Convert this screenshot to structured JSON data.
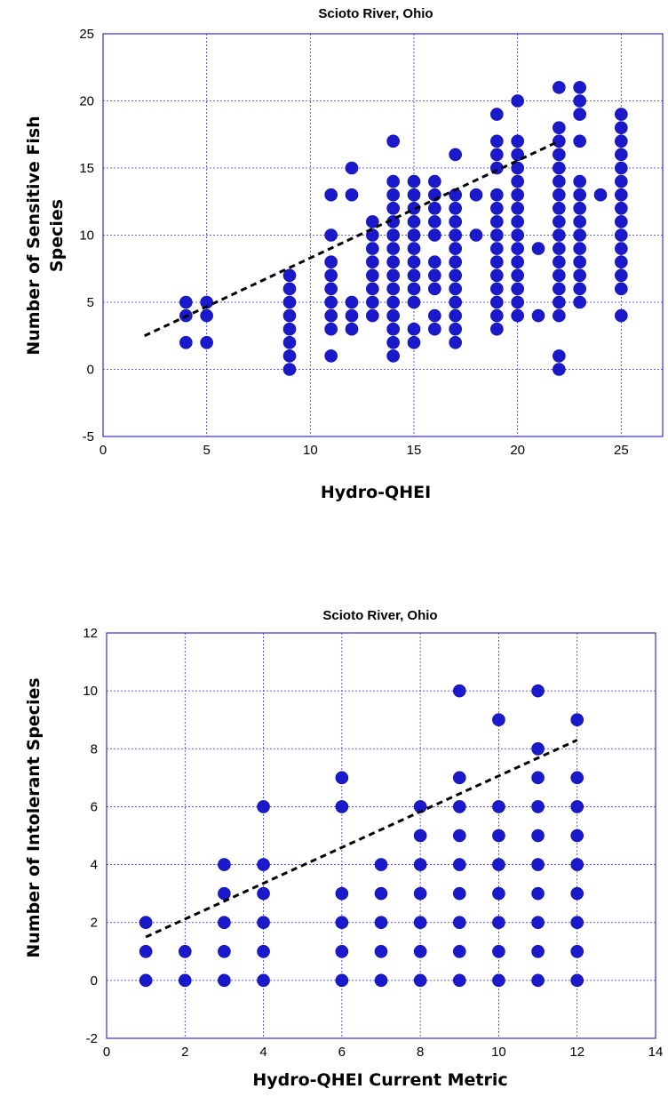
{
  "chart_data": [
    {
      "type": "scatter",
      "title": "Scioto River, Ohio",
      "xlabel": "Hydro-QHEI",
      "ylabel_lines": [
        "Number of Sensitive Fish",
        "Species"
      ],
      "xlim": [
        0,
        27
      ],
      "ylim": [
        -5,
        25
      ],
      "xticks": [
        0,
        5,
        10,
        15,
        20,
        25
      ],
      "yticks": [
        -5,
        0,
        5,
        10,
        15,
        20,
        25
      ],
      "grid": true,
      "marker_color": "#1a1acc",
      "trendline": {
        "x": [
          2,
          22
        ],
        "y": [
          2.5,
          17
        ]
      },
      "points": [
        [
          4,
          2
        ],
        [
          4,
          4
        ],
        [
          4,
          5
        ],
        [
          5,
          2
        ],
        [
          5,
          4
        ],
        [
          5,
          5
        ],
        [
          9,
          0
        ],
        [
          9,
          1
        ],
        [
          9,
          2
        ],
        [
          9,
          3
        ],
        [
          9,
          4
        ],
        [
          9,
          5
        ],
        [
          9,
          6
        ],
        [
          9,
          7
        ],
        [
          11,
          1
        ],
        [
          11,
          3
        ],
        [
          11,
          4
        ],
        [
          11,
          5
        ],
        [
          11,
          6
        ],
        [
          11,
          7
        ],
        [
          11,
          8
        ],
        [
          11,
          10
        ],
        [
          11,
          13
        ],
        [
          12,
          3
        ],
        [
          12,
          4
        ],
        [
          12,
          5
        ],
        [
          12,
          13
        ],
        [
          12,
          15
        ],
        [
          13,
          4
        ],
        [
          13,
          5
        ],
        [
          13,
          6
        ],
        [
          13,
          7
        ],
        [
          13,
          8
        ],
        [
          13,
          9
        ],
        [
          13,
          10
        ],
        [
          13,
          11
        ],
        [
          14,
          1
        ],
        [
          14,
          2
        ],
        [
          14,
          3
        ],
        [
          14,
          4
        ],
        [
          14,
          5
        ],
        [
          14,
          6
        ],
        [
          14,
          7
        ],
        [
          14,
          8
        ],
        [
          14,
          9
        ],
        [
          14,
          10
        ],
        [
          14,
          11
        ],
        [
          14,
          12
        ],
        [
          14,
          13
        ],
        [
          14,
          14
        ],
        [
          14,
          17
        ],
        [
          15,
          2
        ],
        [
          15,
          3
        ],
        [
          15,
          5
        ],
        [
          15,
          6
        ],
        [
          15,
          7
        ],
        [
          15,
          8
        ],
        [
          15,
          9
        ],
        [
          15,
          10
        ],
        [
          15,
          11
        ],
        [
          15,
          12
        ],
        [
          15,
          13
        ],
        [
          15,
          14
        ],
        [
          16,
          3
        ],
        [
          16,
          4
        ],
        [
          16,
          6
        ],
        [
          16,
          7
        ],
        [
          16,
          8
        ],
        [
          16,
          10
        ],
        [
          16,
          11
        ],
        [
          16,
          12
        ],
        [
          16,
          13
        ],
        [
          16,
          14
        ],
        [
          17,
          2
        ],
        [
          17,
          3
        ],
        [
          17,
          4
        ],
        [
          17,
          5
        ],
        [
          17,
          6
        ],
        [
          17,
          7
        ],
        [
          17,
          8
        ],
        [
          17,
          9
        ],
        [
          17,
          10
        ],
        [
          17,
          11
        ],
        [
          17,
          12
        ],
        [
          17,
          13
        ],
        [
          17,
          16
        ],
        [
          18,
          10
        ],
        [
          18,
          13
        ],
        [
          19,
          3
        ],
        [
          19,
          4
        ],
        [
          19,
          5
        ],
        [
          19,
          6
        ],
        [
          19,
          7
        ],
        [
          19,
          8
        ],
        [
          19,
          9
        ],
        [
          19,
          10
        ],
        [
          19,
          11
        ],
        [
          19,
          12
        ],
        [
          19,
          13
        ],
        [
          19,
          15
        ],
        [
          19,
          16
        ],
        [
          19,
          17
        ],
        [
          19,
          19
        ],
        [
          20,
          4
        ],
        [
          20,
          5
        ],
        [
          20,
          6
        ],
        [
          20,
          7
        ],
        [
          20,
          8
        ],
        [
          20,
          9
        ],
        [
          20,
          10
        ],
        [
          20,
          11
        ],
        [
          20,
          12
        ],
        [
          20,
          13
        ],
        [
          20,
          14
        ],
        [
          20,
          15
        ],
        [
          20,
          16
        ],
        [
          20,
          17
        ],
        [
          20,
          20
        ],
        [
          21,
          4
        ],
        [
          21,
          9
        ],
        [
          22,
          0
        ],
        [
          22,
          1
        ],
        [
          22,
          4
        ],
        [
          22,
          5
        ],
        [
          22,
          6
        ],
        [
          22,
          7
        ],
        [
          22,
          8
        ],
        [
          22,
          9
        ],
        [
          22,
          10
        ],
        [
          22,
          11
        ],
        [
          22,
          12
        ],
        [
          22,
          13
        ],
        [
          22,
          14
        ],
        [
          22,
          15
        ],
        [
          22,
          16
        ],
        [
          22,
          17
        ],
        [
          22,
          18
        ],
        [
          22,
          21
        ],
        [
          23,
          5
        ],
        [
          23,
          6
        ],
        [
          23,
          7
        ],
        [
          23,
          8
        ],
        [
          23,
          9
        ],
        [
          23,
          10
        ],
        [
          23,
          11
        ],
        [
          23,
          12
        ],
        [
          23,
          13
        ],
        [
          23,
          14
        ],
        [
          23,
          17
        ],
        [
          23,
          19
        ],
        [
          23,
          20
        ],
        [
          23,
          21
        ],
        [
          24,
          13
        ],
        [
          25,
          4
        ],
        [
          25,
          6
        ],
        [
          25,
          7
        ],
        [
          25,
          8
        ],
        [
          25,
          9
        ],
        [
          25,
          10
        ],
        [
          25,
          11
        ],
        [
          25,
          12
        ],
        [
          25,
          13
        ],
        [
          25,
          14
        ],
        [
          25,
          15
        ],
        [
          25,
          16
        ],
        [
          25,
          17
        ],
        [
          25,
          18
        ],
        [
          25,
          19
        ]
      ]
    },
    {
      "type": "scatter",
      "title": "Scioto River, Ohio",
      "xlabel": "Hydro-QHEI Current Metric",
      "ylabel_lines": [
        "Number of Intolerant Species"
      ],
      "xlim": [
        0,
        14
      ],
      "ylim": [
        -2,
        12
      ],
      "xticks": [
        0,
        2,
        4,
        6,
        8,
        10,
        12,
        14
      ],
      "yticks": [
        -2,
        0,
        2,
        4,
        6,
        8,
        10,
        12
      ],
      "grid": true,
      "marker_color": "#1a1acc",
      "trendline": {
        "x": [
          1,
          12
        ],
        "y": [
          1.5,
          8.3
        ]
      },
      "points": [
        [
          1,
          0
        ],
        [
          1,
          1
        ],
        [
          1,
          2
        ],
        [
          2,
          0
        ],
        [
          2,
          1
        ],
        [
          3,
          0
        ],
        [
          3,
          1
        ],
        [
          3,
          2
        ],
        [
          3,
          3
        ],
        [
          3,
          4
        ],
        [
          4,
          0
        ],
        [
          4,
          1
        ],
        [
          4,
          2
        ],
        [
          4,
          3
        ],
        [
          4,
          4
        ],
        [
          4,
          6
        ],
        [
          6,
          0
        ],
        [
          6,
          1
        ],
        [
          6,
          2
        ],
        [
          6,
          3
        ],
        [
          6,
          6
        ],
        [
          6,
          7
        ],
        [
          7,
          0
        ],
        [
          7,
          1
        ],
        [
          7,
          2
        ],
        [
          7,
          3
        ],
        [
          7,
          4
        ],
        [
          8,
          0
        ],
        [
          8,
          1
        ],
        [
          8,
          2
        ],
        [
          8,
          3
        ],
        [
          8,
          4
        ],
        [
          8,
          5
        ],
        [
          8,
          6
        ],
        [
          9,
          0
        ],
        [
          9,
          1
        ],
        [
          9,
          2
        ],
        [
          9,
          3
        ],
        [
          9,
          4
        ],
        [
          9,
          5
        ],
        [
          9,
          6
        ],
        [
          9,
          7
        ],
        [
          9,
          10
        ],
        [
          10,
          0
        ],
        [
          10,
          1
        ],
        [
          10,
          2
        ],
        [
          10,
          3
        ],
        [
          10,
          4
        ],
        [
          10,
          5
        ],
        [
          10,
          6
        ],
        [
          10,
          9
        ],
        [
          11,
          0
        ],
        [
          11,
          1
        ],
        [
          11,
          2
        ],
        [
          11,
          3
        ],
        [
          11,
          4
        ],
        [
          11,
          5
        ],
        [
          11,
          6
        ],
        [
          11,
          7
        ],
        [
          11,
          8
        ],
        [
          11,
          10
        ],
        [
          12,
          0
        ],
        [
          12,
          1
        ],
        [
          12,
          2
        ],
        [
          12,
          3
        ],
        [
          12,
          4
        ],
        [
          12,
          5
        ],
        [
          12,
          6
        ],
        [
          12,
          7
        ],
        [
          12,
          9
        ]
      ]
    }
  ]
}
